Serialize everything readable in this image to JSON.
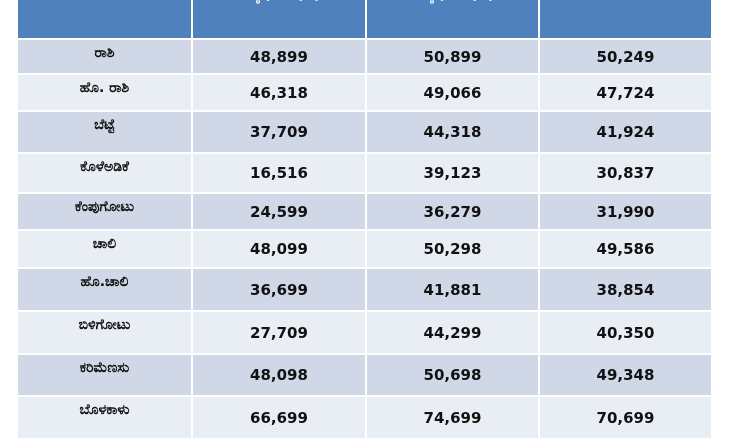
{
  "table": {
    "headers": [
      "ಕನಿಷ್ಠ (Rs/Qtl)",
      "ಗರಿಷ್ಠ (Rs/Qtl)"
    ],
    "rows": [
      [
        "ರಾಶಿ",
        "48,899",
        "50,899",
        "50,249"
      ],
      [
        "ಹೊ. ರಾಶಿ",
        "46,318",
        "49,066",
        "47,724"
      ],
      [
        "ಬೆಟ್ಟೆ",
        "37,709",
        "44,318",
        "41,924"
      ],
      [
        "ಕೊಳೆಅಡಿಕೆ",
        "16,516",
        "39,123",
        "30,837"
      ],
      [
        "ಕೆಂಪುಗೋಟು",
        "24,599",
        "36,279",
        "31,990"
      ],
      [
        "ಚಾಲಿ",
        "48,099",
        "50,298",
        "49,586"
      ],
      [
        "ಹೊ.ಚಾಲಿ",
        "36,699",
        "41,881",
        "38,854"
      ],
      [
        "ಬಿಳಿಗೋಟು",
        "27,709",
        "44,299",
        "40,350"
      ],
      [
        "ಕರಿಮೆಣಸು",
        "48,098",
        "50,698",
        "49,348"
      ],
      [
        "ಬೊಳಕಾಳು",
        "66,699",
        "74,699",
        "70,699"
      ]
    ]
  }
}
